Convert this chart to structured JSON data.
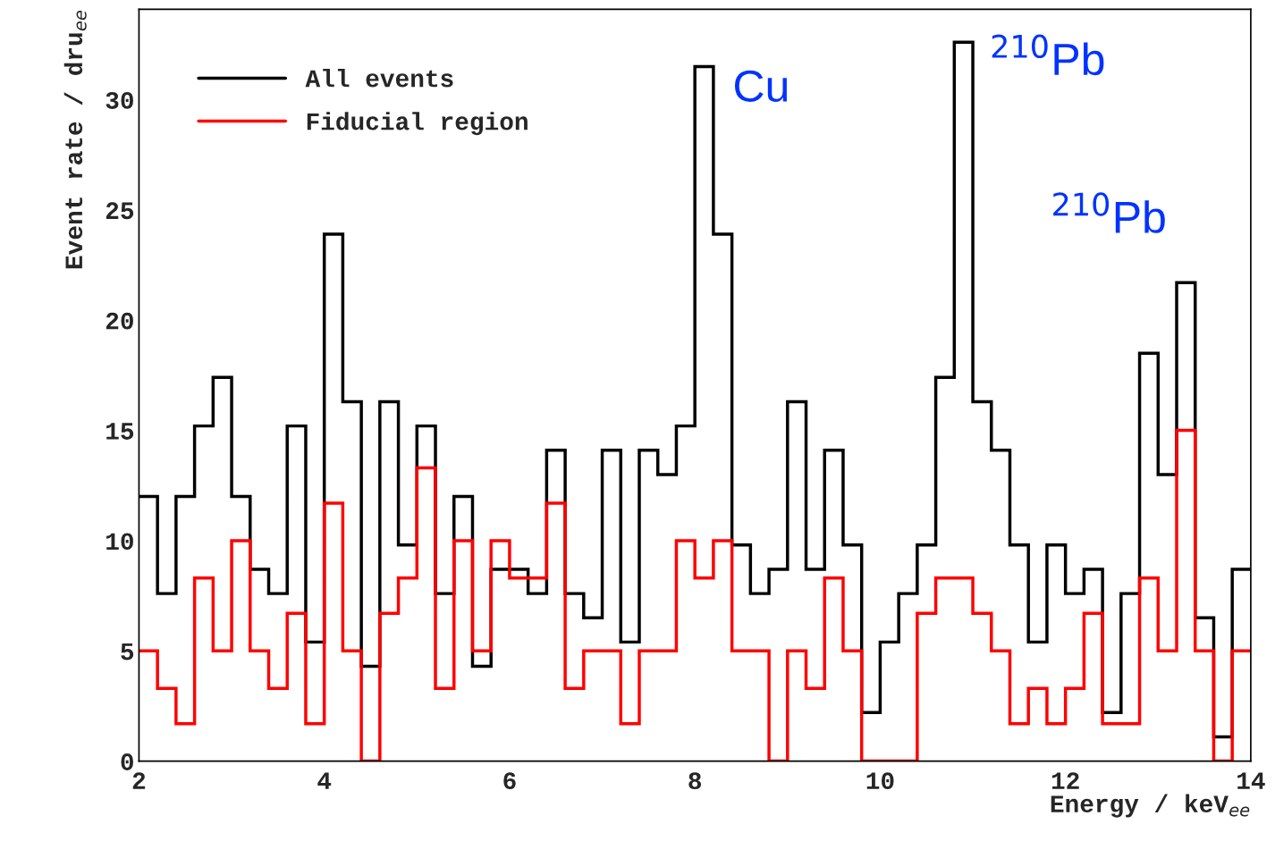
{
  "chart_data": {
    "type": "histogram",
    "xlabel": "Energy / keV$_{ee}$",
    "ylabel": "Event rate / dru$_{ee}$",
    "bins": [
      2.0,
      2.2,
      2.4,
      2.6,
      2.8,
      3.0,
      3.2,
      3.4,
      3.6,
      3.8,
      4.0,
      4.2,
      4.4,
      4.6,
      4.8,
      5.0,
      5.2,
      5.4,
      5.6,
      5.8,
      6.0,
      6.2,
      6.4,
      6.6,
      6.8,
      7.0,
      7.2,
      7.4,
      7.6,
      7.8,
      8.0,
      8.2,
      8.4,
      8.6,
      8.8,
      9.0,
      9.2,
      9.4,
      9.6,
      9.8,
      10.0,
      10.2,
      10.4,
      10.6,
      10.8,
      11.0,
      11.2,
      11.4,
      11.6,
      11.8,
      12.0,
      12.2,
      12.4,
      12.6,
      12.8,
      13.0,
      13.2,
      13.4,
      13.6,
      13.8,
      14.0
    ],
    "series": [
      {
        "name": "All events",
        "color": "#000000",
        "values": [
          12,
          7.6,
          12,
          15.2,
          17.4,
          12,
          8.7,
          7.6,
          15.2,
          5.4,
          23.9,
          16.3,
          4.3,
          16.3,
          9.8,
          15.2,
          7.6,
          12,
          4.3,
          8.7,
          8.7,
          7.6,
          14.1,
          7.6,
          6.5,
          14.1,
          5.4,
          14.1,
          13,
          15.2,
          31.5,
          23.9,
          9.8,
          7.6,
          8.7,
          16.3,
          8.7,
          14.1,
          9.8,
          2.2,
          5.4,
          7.6,
          9.8,
          17.4,
          32.6,
          16.3,
          14.1,
          9.8,
          5.4,
          9.8,
          7.6,
          8.7,
          2.2,
          7.6,
          18.5,
          13,
          21.7,
          6.5,
          1.1,
          8.7
        ]
      },
      {
        "name": "Fiducial region",
        "color": "#ff0000",
        "values": [
          5,
          3.3,
          1.7,
          8.3,
          5,
          10,
          5,
          3.3,
          6.7,
          1.7,
          11.7,
          5,
          0,
          6.7,
          8.3,
          13.3,
          3.3,
          10,
          5,
          10,
          8.3,
          8.3,
          11.7,
          3.3,
          5,
          5,
          1.7,
          5,
          5,
          10,
          8.3,
          10,
          5,
          5,
          0,
          5,
          3.3,
          8.3,
          5,
          0,
          0,
          0,
          6.7,
          8.3,
          8.3,
          6.7,
          5,
          1.7,
          3.3,
          1.7,
          3.3,
          6.7,
          1.7,
          1.7,
          8.3,
          5,
          15,
          5,
          0,
          5
        ]
      }
    ],
    "annotations": [
      "Cu",
      "$^{210}$Pb",
      "$^{210}$Pb"
    ],
    "xlim": [
      2,
      14
    ],
    "ylim": [
      0,
      34.1
    ],
    "xticks": [
      2,
      4,
      6,
      8,
      10,
      12,
      14
    ],
    "yticks": [
      0,
      5,
      10,
      15,
      20,
      25,
      30
    ],
    "grid": false,
    "legend": "top left"
  }
}
